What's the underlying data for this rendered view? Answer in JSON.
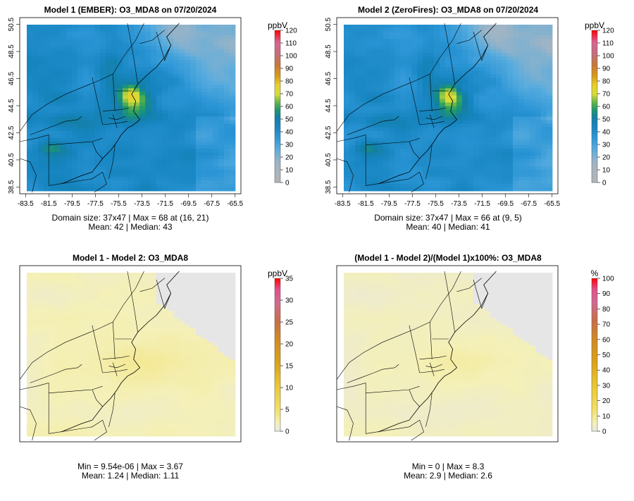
{
  "chart_data": [
    {
      "type": "heatmap",
      "title": "Model 1 (EMBER): O3_MDA8 on 07/20/2024",
      "x_ticks": [
        "-83.5",
        "-81.5",
        "-79.5",
        "-77.5",
        "-75.5",
        "-73.5",
        "-71.5",
        "-69.5",
        "-67.5",
        "-65.5"
      ],
      "y_ticks": [
        "38.5",
        "40.5",
        "42.5",
        "44.5",
        "46.5",
        "48.5",
        "50.5"
      ],
      "xlim": [
        -84,
        -65
      ],
      "ylim": [
        38,
        51
      ],
      "colorbar": {
        "unit": "ppbV",
        "min": 0,
        "max": 120,
        "ticks": [
          "0",
          "10",
          "20",
          "30",
          "40",
          "50",
          "60",
          "70",
          "80",
          "90",
          "100",
          "110",
          "120"
        ]
      },
      "grid_size": "37x47",
      "stats": {
        "line1": "Domain size: 37x47 | Max = 68 at (16, 21)",
        "line2": "Mean: 42 |  Median: 43"
      },
      "max": 68,
      "mean": 42,
      "median": 43
    },
    {
      "type": "heatmap",
      "title": "Model 2 (ZeroFires): O3_MDA8 on 07/20/2024",
      "x_ticks": [
        "-83.5",
        "-81.5",
        "-79.5",
        "-77.5",
        "-75.5",
        "-73.5",
        "-71.5",
        "-69.5",
        "-67.5",
        "-65.5"
      ],
      "y_ticks": [
        "38.5",
        "40.5",
        "42.5",
        "44.5",
        "46.5",
        "48.5",
        "50.5"
      ],
      "xlim": [
        -84,
        -65
      ],
      "ylim": [
        38,
        51
      ],
      "colorbar": {
        "unit": "ppbV",
        "min": 0,
        "max": 120,
        "ticks": [
          "0",
          "10",
          "20",
          "30",
          "40",
          "50",
          "60",
          "70",
          "80",
          "90",
          "100",
          "110",
          "120"
        ]
      },
      "grid_size": "37x47",
      "stats": {
        "line1": "Domain size: 37x47 | Max = 66 at (9, 5)",
        "line2": "Mean: 40 |  Median: 41"
      },
      "max": 66,
      "mean": 40,
      "median": 41
    },
    {
      "type": "heatmap",
      "title": "Model 1 - Model 2: O3_MDA8",
      "colorbar": {
        "unit": "ppbV",
        "min": 0,
        "max": 35,
        "ticks": [
          "0",
          "5",
          "10",
          "15",
          "20",
          "25",
          "30",
          "35"
        ]
      },
      "stats": {
        "line1": "Min = 9.54e-06 | Max = 3.67",
        "line2": "Mean: 1.24 |  Median: 1.11"
      },
      "min": 9.54e-06,
      "max": 3.67,
      "mean": 1.24,
      "median": 1.11
    },
    {
      "type": "heatmap",
      "title": "(Model 1 - Model 2)/(Model 1)x100%: O3_MDA8",
      "colorbar": {
        "unit": "%",
        "min": 0,
        "max": 100,
        "ticks": [
          "0",
          "10",
          "20",
          "30",
          "40",
          "50",
          "60",
          "70",
          "80",
          "90",
          "100"
        ]
      },
      "stats": {
        "line1": "Min = 0 | Max = 8.3",
        "line2": "Mean: 2.9 |  Median: 2.6"
      },
      "min": 0,
      "max": 8.3,
      "mean": 2.9,
      "median": 2.6
    }
  ]
}
